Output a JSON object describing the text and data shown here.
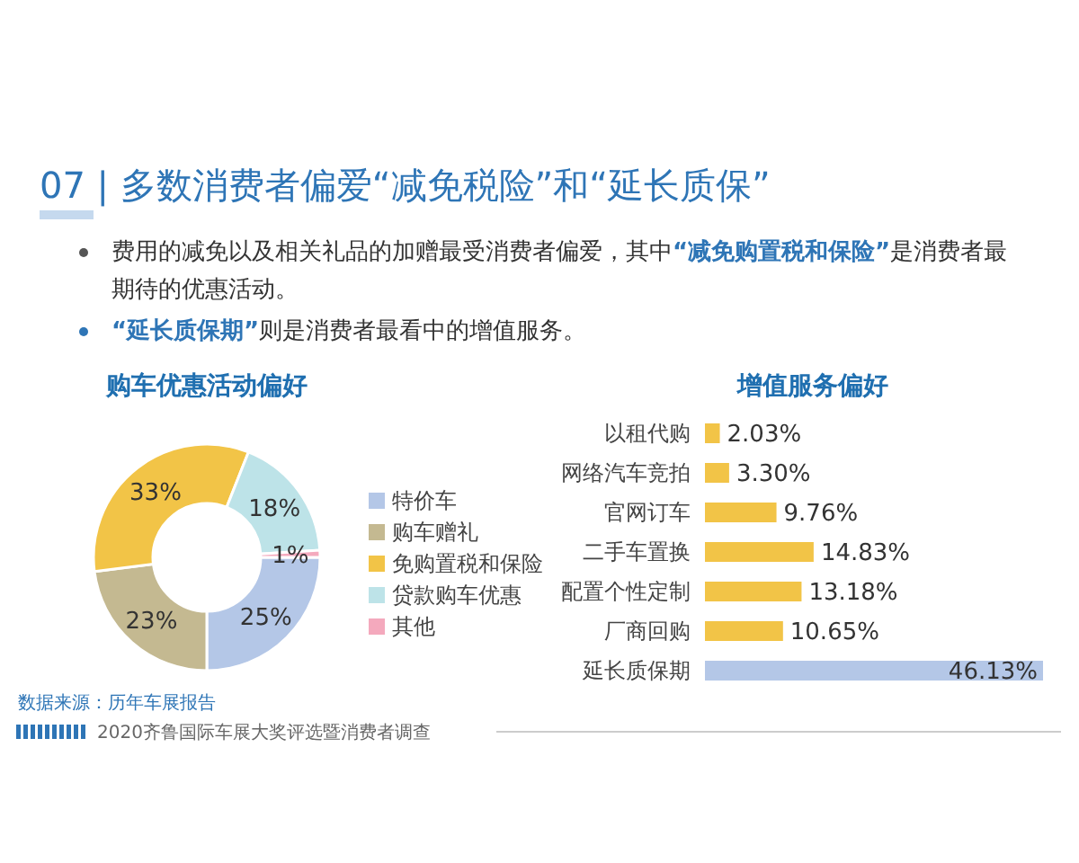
{
  "chart_data": [
    {
      "type": "other",
      "title": "07 | 多数消费者偏爱“减免税险”和“延长质保”",
      "annotations": [
        "费用的减免以及相关礼品的加赠最受消费者偏爱，其中“减免购置税和保险”是消费者最期待的优惠活动。",
        "“延长质保期”则是消费者最看中的增值服务。"
      ]
    },
    {
      "type": "donut",
      "title": "购车优惠活动偏好",
      "categories": [
        "特价车",
        "购车赠礼",
        "免购置税和保险",
        "贷款购车优惠",
        "其他"
      ],
      "values": [
        25,
        23,
        33,
        18,
        1
      ],
      "colors": [
        "#b4c7e7",
        "#c4b991",
        "#f2c447",
        "#bde3e8",
        "#f4a9bd"
      ],
      "value_labels": [
        "25%",
        "23%",
        "33%",
        "18%",
        "1%"
      ],
      "legend": "right",
      "annotations": [
        "数据来源：历年车展报告",
        "2020齐鲁国际车展大奖评选暨消费者调查"
      ]
    },
    {
      "type": "bar",
      "orientation": "horizontal",
      "title": "增值服务偏好",
      "categories": [
        "以租代购",
        "网络汽车竞拍",
        "官网订车",
        "二手车置换",
        "配置个性定制",
        "厂商回购",
        "延长质保期"
      ],
      "values": [
        2.03,
        3.3,
        9.76,
        14.83,
        13.18,
        10.65,
        46.13
      ],
      "colors": [
        "#f2c447",
        "#f2c447",
        "#f2c447",
        "#f2c447",
        "#f2c447",
        "#f2c447",
        "#b4c7e7"
      ],
      "value_labels": [
        "2.03%",
        "3.30%",
        "9.76%",
        "14.83%",
        "13.18%",
        "10.65%",
        "46.13%"
      ]
    }
  ]
}
